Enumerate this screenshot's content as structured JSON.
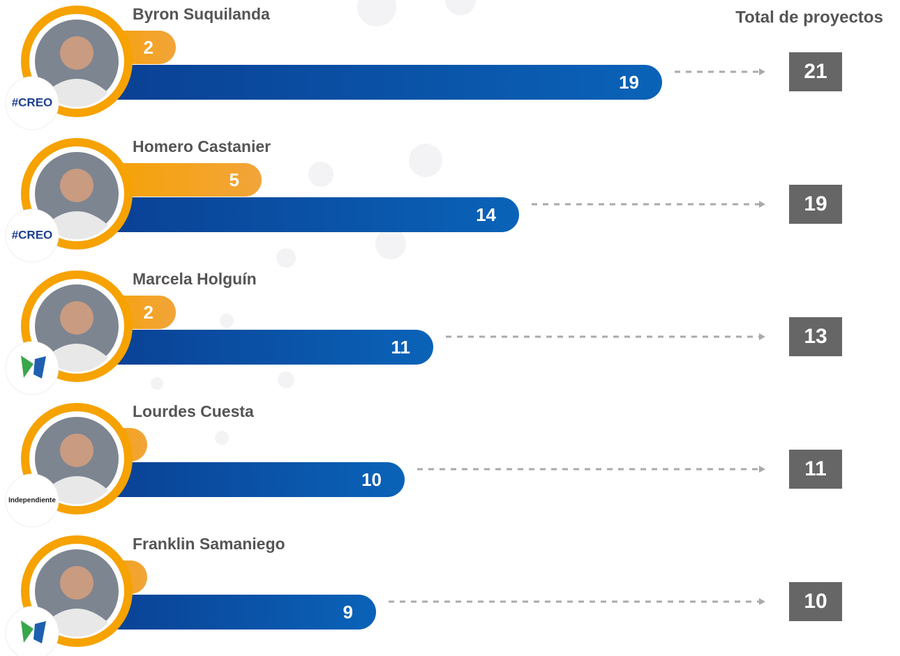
{
  "chart_data": {
    "type": "bar",
    "total_title": "Total de proyectos",
    "categories": [
      "Byron Suquilanda",
      "Homero Castanier",
      "Marcela Holguín",
      "Lourdes Cuesta",
      "Franklin Samaniego"
    ],
    "parties": [
      "#CREO",
      "#CREO",
      null,
      "Independiente",
      null
    ],
    "series": [
      {
        "color": "#f5a000",
        "values": [
          2,
          5,
          2,
          1,
          1
        ]
      },
      {
        "color": "#0a4fa6",
        "values": [
          19,
          14,
          11,
          10,
          9
        ]
      }
    ],
    "totals": [
      21,
      19,
      13,
      11,
      10
    ]
  }
}
